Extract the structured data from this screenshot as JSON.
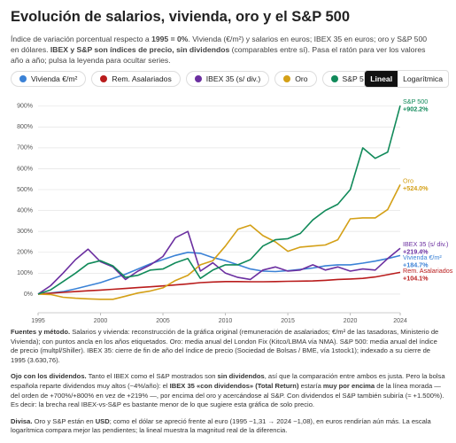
{
  "header": {
    "title": "Evolución de salarios, vivienda, oro y el S&P 500",
    "subtitle": [
      {
        "text": "Índice de variación porcentual respecto a ",
        "bold": false
      },
      {
        "text": "1995 = 0%",
        "bold": true
      },
      {
        "text": ". Vivienda (€/m²) y salarios en euros; IBEX 35 en euros; oro y S&P 500 en dólares. ",
        "bold": false
      },
      {
        "text": "IBEX y S&P son índices de precio, sin dividendos",
        "bold": true
      },
      {
        "text": " (comparables entre sí). Pasa el ratón para ver los valores año a año; pulsa la leyenda para ocultar series.",
        "bold": false
      }
    ]
  },
  "controls": {
    "scales": [
      "Lineal",
      "Logarítmica"
    ],
    "active": 0
  },
  "chart_data": {
    "type": "line",
    "x": [
      1995,
      1996,
      1997,
      1998,
      1999,
      2000,
      2001,
      2002,
      2003,
      2004,
      2005,
      2006,
      2007,
      2008,
      2009,
      2010,
      2011,
      2012,
      2013,
      2014,
      2015,
      2016,
      2017,
      2018,
      2019,
      2020,
      2021,
      2022,
      2023,
      2024
    ],
    "xlim": [
      1995,
      2024
    ],
    "xticks": [
      1995,
      2000,
      2005,
      2010,
      2015,
      2020,
      2024
    ],
    "ylim": [
      -30,
      920
    ],
    "yticks": [
      {
        "value": 0,
        "label": "0%"
      },
      {
        "value": 100,
        "label": "100%"
      },
      {
        "value": 200,
        "label": "200%"
      },
      {
        "value": 300,
        "label": "300%"
      },
      {
        "value": 400,
        "label": "400%"
      },
      {
        "value": 500,
        "label": "500%"
      },
      {
        "value": 600,
        "label": "600%"
      },
      {
        "value": 700,
        "label": "700%"
      },
      {
        "value": 800,
        "label": "800%"
      },
      {
        "value": 900,
        "label": "900%"
      }
    ],
    "grid": true,
    "series": [
      {
        "name": "Vivienda €/m²",
        "color": "#3b82d6",
        "values": [
          0,
          5,
          12,
          25,
          40,
          55,
          75,
          95,
          120,
          145,
          165,
          185,
          200,
          195,
          175,
          160,
          140,
          120,
          110,
          108,
          112,
          118,
          125,
          135,
          140,
          140,
          148,
          158,
          170,
          184.7
        ],
        "value_labels": [
          null,
          null,
          null,
          null,
          null,
          null,
          null,
          null,
          null,
          null,
          null,
          null,
          null,
          null,
          null,
          null,
          null,
          null,
          null,
          null,
          null,
          null,
          null,
          null,
          null,
          null,
          null,
          null,
          null,
          "+184.7%"
        ]
      },
      {
        "name": "Rem. Asalariados",
        "color": "#b91c1c",
        "values": [
          0,
          4,
          8,
          12,
          16,
          19,
          23,
          27,
          31,
          35,
          39,
          44,
          49,
          55,
          58,
          60,
          60,
          59,
          59,
          60,
          61,
          62,
          63,
          66,
          70,
          72,
          75,
          82,
          93,
          104.1
        ],
        "value_labels": [
          null,
          null,
          null,
          null,
          null,
          null,
          null,
          null,
          null,
          null,
          null,
          null,
          null,
          null,
          null,
          null,
          null,
          null,
          null,
          null,
          null,
          null,
          null,
          null,
          null,
          null,
          null,
          null,
          null,
          "+104.1%"
        ]
      },
      {
        "name": "IBEX 35 (s/ div.)",
        "color": "#6b2fa0",
        "values": [
          0,
          40,
          100,
          165,
          215,
          155,
          130,
          70,
          110,
          140,
          180,
          270,
          300,
          110,
          150,
          100,
          80,
          70,
          115,
          130,
          110,
          115,
          140,
          115,
          130,
          110,
          120,
          115,
          170,
          219.4
        ],
        "value_labels": [
          null,
          null,
          null,
          null,
          null,
          null,
          null,
          null,
          null,
          null,
          null,
          null,
          null,
          null,
          null,
          null,
          null,
          null,
          null,
          null,
          null,
          null,
          null,
          null,
          null,
          null,
          null,
          null,
          null,
          "+219.4%"
        ]
      },
      {
        "name": "Oro",
        "color": "#d4a017",
        "values": [
          0,
          -2,
          -15,
          -20,
          -23,
          -25,
          -25,
          -10,
          5,
          15,
          30,
          65,
          90,
          140,
          160,
          230,
          310,
          330,
          280,
          250,
          205,
          225,
          230,
          235,
          260,
          360,
          365,
          365,
          405,
          524
        ],
        "value_labels": [
          null,
          null,
          null,
          null,
          null,
          null,
          null,
          null,
          null,
          null,
          null,
          null,
          null,
          null,
          null,
          null,
          null,
          null,
          null,
          null,
          null,
          null,
          null,
          null,
          null,
          null,
          null,
          null,
          null,
          "+524.0%"
        ]
      },
      {
        "name": "S&P 500",
        "color": "#118a5a",
        "values": [
          0,
          20,
          60,
          100,
          145,
          160,
          135,
          80,
          90,
          115,
          120,
          150,
          170,
          75,
          115,
          140,
          140,
          165,
          230,
          260,
          265,
          290,
          355,
          400,
          430,
          500,
          700,
          650,
          680,
          902.2
        ],
        "value_labels": [
          null,
          null,
          null,
          null,
          null,
          null,
          null,
          null,
          null,
          null,
          null,
          null,
          null,
          null,
          null,
          null,
          null,
          null,
          null,
          null,
          null,
          null,
          null,
          null,
          null,
          null,
          null,
          null,
          null,
          "+902.2%"
        ]
      }
    ]
  },
  "notes": [
    [
      {
        "text": "Fuentes y método.",
        "bold": true
      },
      {
        "text": " Salarios y vivienda: reconstrucción de la gráfica original (remuneración de asalariados; €/m² de las tasadoras, Ministerio de Vivienda); con puntos ancla en los años etiquetados. Oro: media anual del London Fix (Kitco/LBMA vía NMA). S&P 500: media anual del índice de precio (multpl/Shiller). IBEX 35: cierre de fin de año del índice de precio (Sociedad de Bolsas / BME, vía 1stock1); indexado a su cierre de 1995 (3.630,76).",
        "bold": false
      }
    ],
    [
      {
        "text": "Ojo con los dividendos.",
        "bold": true
      },
      {
        "text": " Tanto el IBEX como el S&P mostrados son ",
        "bold": false
      },
      {
        "text": "sin dividendos",
        "bold": true
      },
      {
        "text": ", así que la comparación entre ambos es justa. Pero la bolsa española reparte dividendos muy altos (~4%/año): el ",
        "bold": false
      },
      {
        "text": "IBEX 35 «con dividendos» (Total Return)",
        "bold": true
      },
      {
        "text": " estaría ",
        "bold": false
      },
      {
        "text": "muy por encima",
        "bold": true
      },
      {
        "text": " de la línea morada — del orden de +700%/+800% en vez de +219% —, por encima del oro y acercándose al S&P. Con dividendos el S&P también subiría (≈ +1.500%). Es decir: la brecha real IBEX-vs-S&P es bastante menor de lo que sugiere esta gráfica de solo precio.",
        "bold": false
      }
    ],
    [
      {
        "text": "Divisa.",
        "bold": true
      },
      {
        "text": " Oro y S&P están en ",
        "bold": false
      },
      {
        "text": "USD",
        "bold": true
      },
      {
        "text": "; como el dólar se apreció frente al euro (1995 ~1,31 → 2024 ~1,08), en euros rendirían aún más. La escala logarítmica compara mejor las pendientes; la lineal muestra la magnitud real de la diferencia.",
        "bold": false
      }
    ]
  ]
}
